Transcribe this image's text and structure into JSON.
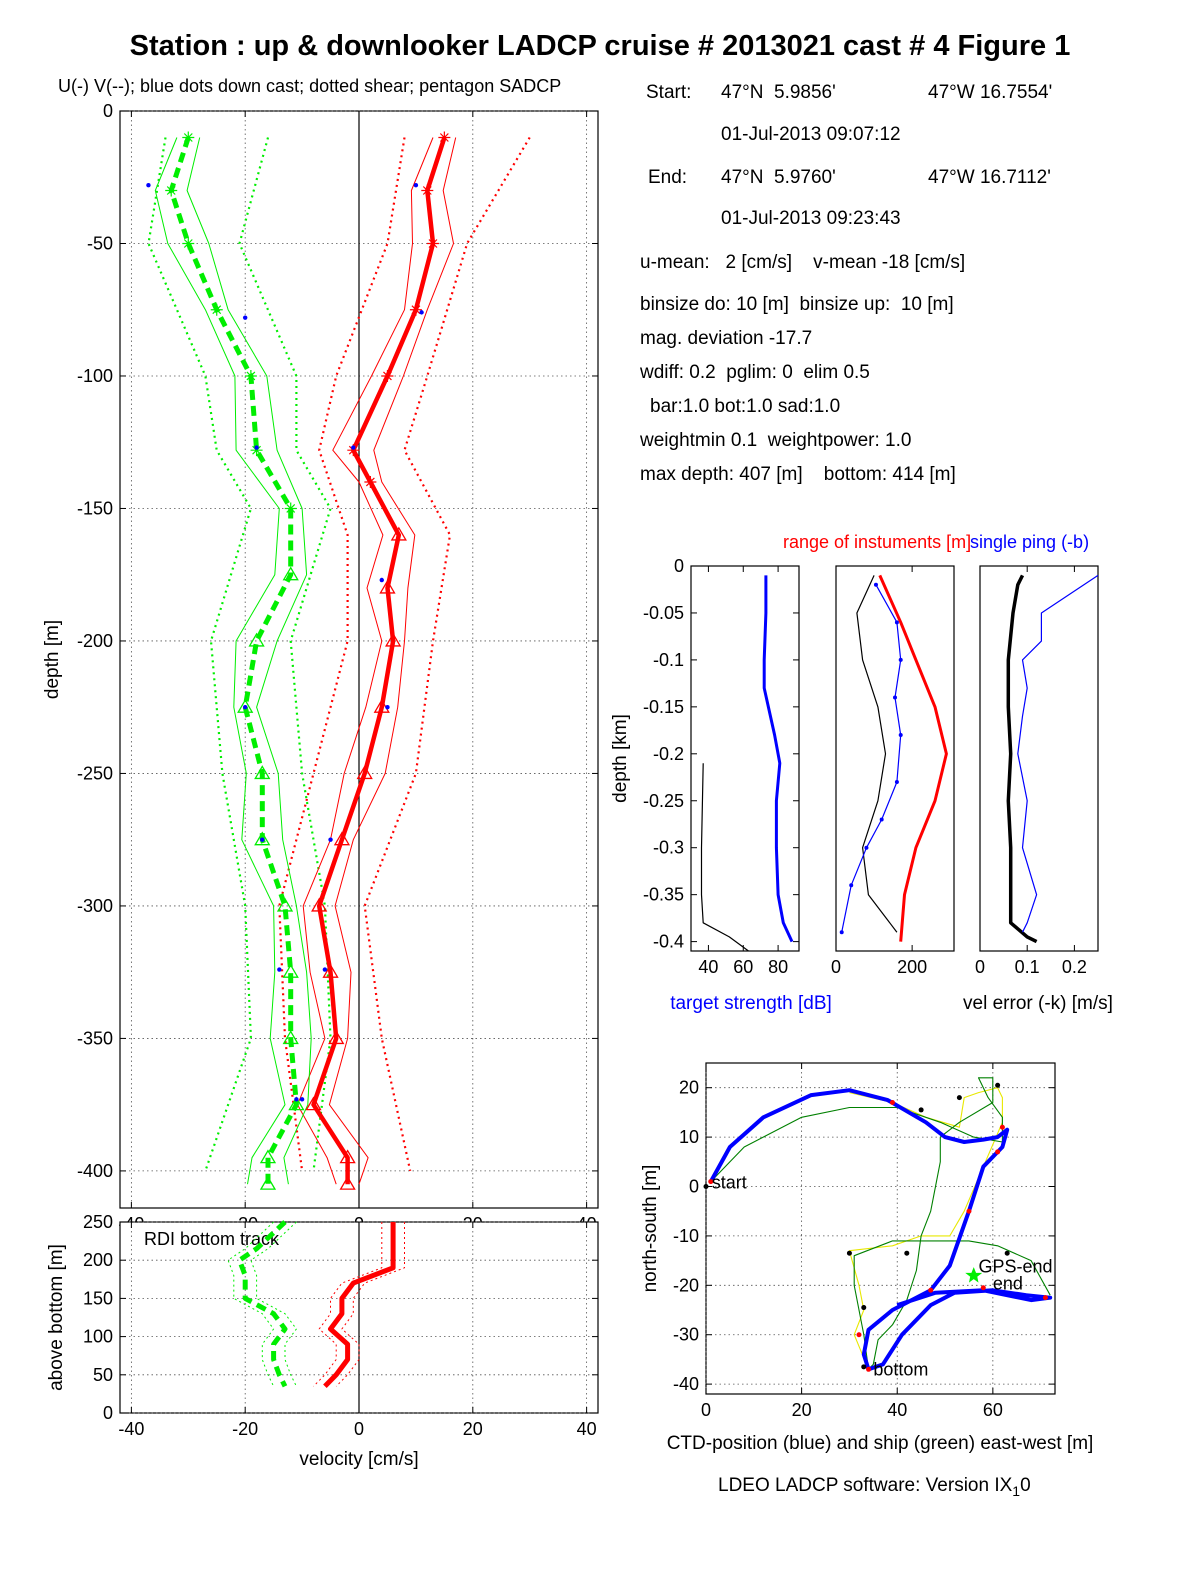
{
  "title": "Station : up & downlooker LADCP cruise # 2013021 cast # 4  Figure 1",
  "footer": "LDEO LADCP software: Version IX",
  "footer_sub": "1",
  "footer_suffix": "0",
  "info": {
    "start_label": "Start:",
    "start_lat": "47°N  5.9856'",
    "start_lon": "47°W 16.7554'",
    "start_time": "01-Jul-2013 09:07:12",
    "end_label": "End:",
    "end_lat": "47°N  5.9760'",
    "end_lon": "47°W 16.7112'",
    "end_time": "01-Jul-2013 09:23:43",
    "means": "u-mean:   2 [cm/s]    v-mean -18 [cm/s]",
    "binsize": "binsize do: 10 [m]  binsize up:  10 [m]",
    "magdev": "mag. deviation -17.7",
    "wdiff": "wdiff: 0.2  pglim: 0  elim 0.5",
    "bar": "bar:1.0 bot:1.0 sad:1.0",
    "weight": "weightmin 0.1  weightpower: 1.0",
    "depth": "max depth: 407 [m]    bottom: 414 [m]"
  },
  "colors": {
    "u": "#ff0000",
    "v": "#00ee00",
    "blue": "#0000ff",
    "black": "#000000",
    "yellow": "#e8e800",
    "grid": "#555555"
  },
  "chart_data": [
    {
      "id": "velocity_profile",
      "type": "line",
      "title": "U(-) V(--); blue dots down cast; dotted shear; pentagon SADCP",
      "xlabel": "",
      "ylabel": "depth [m]",
      "xlim": [
        -42,
        42
      ],
      "ylim": [
        -414,
        0
      ],
      "xticks": [
        -40,
        -20,
        0,
        20,
        40
      ],
      "yticks": [
        0,
        -50,
        -100,
        -150,
        -200,
        -250,
        -300,
        -350,
        -400
      ],
      "grid": true,
      "series": [
        {
          "label": "U",
          "depth": [
            -10,
            -30,
            -50,
            -75,
            -100,
            -128,
            -140,
            -160,
            -180,
            -200,
            -225,
            -250,
            -275,
            -300,
            -325,
            -350,
            -375,
            -395,
            -405
          ],
          "values": [
            15,
            12,
            13,
            10,
            5,
            -1,
            2,
            7,
            5,
            6,
            4,
            1,
            -3,
            -7,
            -5,
            -4,
            -8,
            -2,
            -2
          ]
        },
        {
          "label": "V",
          "depth": [
            -10,
            -30,
            -50,
            -75,
            -100,
            -128,
            -150,
            -175,
            -200,
            -225,
            -250,
            -275,
            -300,
            -325,
            -350,
            -375,
            -395,
            -405
          ],
          "values": [
            -30,
            -33,
            -30,
            -25,
            -19,
            -18,
            -12,
            -12,
            -18,
            -20,
            -17,
            -17,
            -13,
            -12,
            -12,
            -11,
            -16,
            -16
          ]
        },
        {
          "label": "U shear envelope (dotted)",
          "depth": [
            -10,
            -50,
            -100,
            -128,
            -160,
            -200,
            -250,
            -300,
            -350,
            -400
          ],
          "lower": [
            8,
            5,
            -4,
            -7,
            -2,
            -2,
            -8,
            -14,
            -13,
            -10
          ],
          "upper": [
            30,
            19,
            12,
            8,
            16,
            13,
            10,
            1,
            4,
            9
          ]
        },
        {
          "label": "V shear envelope (dotted)",
          "depth": [
            -10,
            -50,
            -100,
            -128,
            -150,
            -200,
            -250,
            -300,
            -350,
            -400
          ],
          "lower": [
            -34,
            -37,
            -27,
            -25,
            -19,
            -26,
            -24,
            -20,
            -19,
            -27
          ],
          "upper": [
            -16,
            -21,
            -11,
            -11,
            -5,
            -12,
            -10,
            -6,
            -5,
            -8
          ]
        },
        {
          "label": "blue dots down cast",
          "points": [
            [
              -37,
              -28
            ],
            [
              -20,
              -78
            ],
            [
              -18,
              -127
            ],
            [
              -20,
              -225
            ],
            [
              -17,
              -275
            ],
            [
              -14,
              -324
            ],
            [
              -11,
              -373
            ],
            [
              10,
              -28
            ],
            [
              11,
              -76
            ],
            [
              -1,
              -127
            ],
            [
              4,
              -177
            ],
            [
              5,
              -225
            ],
            [
              -5,
              -275
            ],
            [
              -6,
              -324
            ],
            [
              -10,
              -373
            ]
          ]
        }
      ]
    },
    {
      "id": "bottom_track",
      "type": "line",
      "title": "RDI bottom track",
      "xlabel": "velocity [cm/s]",
      "ylabel": "above bottom [m]",
      "xlim": [
        -42,
        42
      ],
      "ylim": [
        0,
        250
      ],
      "xticks": [
        -40,
        -20,
        0,
        20,
        40
      ],
      "yticks": [
        0,
        50,
        100,
        150,
        200,
        250
      ],
      "grid": true,
      "series": [
        {
          "label": "U",
          "height": [
            250,
            215,
            190,
            170,
            150,
            130,
            110,
            90,
            70,
            50,
            35
          ],
          "values": [
            6,
            6,
            6,
            -1,
            -3,
            -3,
            -5,
            -2,
            -2,
            -4,
            -6
          ]
        },
        {
          "label": "V",
          "height": [
            250,
            215,
            200,
            180,
            150,
            130,
            110,
            90,
            70,
            50,
            35
          ],
          "values": [
            -13,
            -18,
            -21,
            -20,
            -20,
            -15,
            -13,
            -15,
            -15,
            -14,
            -13
          ]
        }
      ]
    },
    {
      "id": "target_strength",
      "type": "line",
      "title": "",
      "xlabel": "target strength [dB]",
      "ylabel": "depth [km]",
      "xlim": [
        30,
        92
      ],
      "ylim": [
        -0.41,
        0
      ],
      "xticks": [
        40,
        60,
        80
      ],
      "yticks": [
        0,
        -0.05,
        -0.1,
        -0.15,
        -0.2,
        -0.25,
        -0.3,
        -0.35,
        -0.4
      ],
      "grid": false,
      "series": [
        {
          "color": "blue",
          "depth": [
            -0.01,
            -0.05,
            -0.1,
            -0.13,
            -0.18,
            -0.21,
            -0.25,
            -0.3,
            -0.35,
            -0.38,
            -0.4
          ],
          "values": [
            73,
            73,
            72,
            72,
            78,
            81,
            79,
            79,
            80,
            83,
            88
          ]
        },
        {
          "color": "black",
          "depth": [
            -0.21,
            -0.3,
            -0.35,
            -0.38,
            -0.395,
            -0.41
          ],
          "values": [
            37,
            36,
            36,
            37,
            52,
            63
          ]
        }
      ]
    },
    {
      "id": "range_of_instruments",
      "type": "line",
      "title": "range of instuments [m]",
      "xlabel": "",
      "ylabel": "",
      "xlim": [
        0,
        310
      ],
      "ylim": [
        -0.41,
        0
      ],
      "xticks": [
        0,
        200
      ],
      "grid": false,
      "series": [
        {
          "color": "red",
          "depth": [
            -0.01,
            -0.06,
            -0.1,
            -0.15,
            -0.2,
            -0.25,
            -0.3,
            -0.35,
            -0.4
          ],
          "values": [
            115,
            170,
            210,
            260,
            290,
            260,
            210,
            180,
            170
          ]
        },
        {
          "color": "black",
          "depth": [
            -0.01,
            -0.05,
            -0.1,
            -0.15,
            -0.2,
            -0.25,
            -0.3,
            -0.35,
            -0.39
          ],
          "values": [
            100,
            55,
            70,
            110,
            130,
            110,
            70,
            85,
            160
          ]
        },
        {
          "color": "blue",
          "depth": [
            -0.02,
            -0.06,
            -0.1,
            -0.14,
            -0.18,
            -0.23,
            -0.27,
            -0.3,
            -0.34,
            -0.39
          ],
          "values": [
            105,
            160,
            170,
            155,
            170,
            160,
            120,
            80,
            40,
            15
          ]
        }
      ]
    },
    {
      "id": "velocity_error",
      "type": "line",
      "title": "single ping (-b)",
      "xlabel": "vel error (-k) [m/s]",
      "ylabel": "",
      "xlim": [
        0,
        0.25
      ],
      "ylim": [
        -0.41,
        0
      ],
      "xticks": [
        0,
        0.1,
        0.2
      ],
      "grid": false,
      "series": [
        {
          "color": "black",
          "depth": [
            -0.01,
            -0.02,
            -0.05,
            -0.1,
            -0.15,
            -0.2,
            -0.25,
            -0.3,
            -0.35,
            -0.38,
            -0.395,
            -0.4
          ],
          "values": [
            0.09,
            0.08,
            0.07,
            0.06,
            0.06,
            0.065,
            0.06,
            0.065,
            0.065,
            0.065,
            0.1,
            0.12
          ]
        },
        {
          "color": "blue",
          "depth": [
            -0.01,
            -0.05,
            -0.08,
            -0.1,
            -0.13,
            -0.16,
            -0.2,
            -0.25,
            -0.3,
            -0.35,
            -0.38,
            -0.39
          ],
          "values": [
            0.25,
            0.13,
            0.13,
            0.09,
            0.1,
            0.09,
            0.08,
            0.1,
            0.09,
            0.12,
            0.1,
            0.09
          ]
        }
      ]
    },
    {
      "id": "position",
      "type": "line",
      "title": "",
      "xlabel": "CTD-position (blue) and ship (green) east-west [m]",
      "ylabel": "north-south [m]",
      "xlim": [
        0,
        73
      ],
      "ylim": [
        -42,
        25
      ],
      "xticks": [
        0,
        20,
        40,
        60
      ],
      "yticks": [
        20,
        10,
        0,
        -10,
        -20,
        -30,
        -40
      ],
      "grid": true,
      "labels": {
        "start": "start",
        "bottom": "bottom",
        "gps_end": "GPS-end",
        "end": "end"
      },
      "series": [
        {
          "label": "CTD",
          "color": "blue",
          "points": [
            [
              1,
              1
            ],
            [
              5,
              8
            ],
            [
              12,
              14
            ],
            [
              22,
              18.5
            ],
            [
              30,
              19.5
            ],
            [
              38,
              17.5
            ],
            [
              46,
              13
            ],
            [
              50,
              10
            ],
            [
              54,
              9
            ],
            [
              58,
              9.5
            ],
            [
              61,
              10
            ],
            [
              63,
              11.5
            ],
            [
              62,
              8
            ],
            [
              58,
              4
            ],
            [
              55,
              -5
            ],
            [
              51,
              -16
            ],
            [
              47,
              -21
            ],
            [
              39,
              -25
            ],
            [
              34,
              -29
            ],
            [
              33,
              -34
            ],
            [
              34,
              -37
            ],
            [
              37,
              -36
            ],
            [
              41,
              -30
            ],
            [
              47,
              -24
            ],
            [
              52,
              -21.5
            ],
            [
              60,
              -21
            ],
            [
              67,
              -22
            ],
            [
              72,
              -22.5
            ],
            [
              68,
              -23
            ],
            [
              58,
              -21
            ],
            [
              48,
              -21.5
            ],
            [
              40,
              -24
            ]
          ]
        },
        {
          "label": "ship",
          "color": "green",
          "points": [
            [
              1,
              1
            ],
            [
              8,
              8
            ],
            [
              20,
              14
            ],
            [
              30,
              16
            ],
            [
              40,
              16
            ],
            [
              49,
              13
            ],
            [
              56,
              10
            ],
            [
              62,
              9
            ],
            [
              62,
              14
            ],
            [
              59,
              18
            ],
            [
              57,
              22
            ],
            [
              60,
              22
            ],
            [
              60,
              17
            ],
            [
              53,
              13
            ],
            [
              49,
              10
            ],
            [
              49,
              5
            ],
            [
              48,
              0
            ],
            [
              47,
              -5
            ],
            [
              45,
              -10
            ],
            [
              44,
              -17
            ],
            [
              42,
              -23
            ],
            [
              39,
              -28
            ],
            [
              36,
              -31
            ],
            [
              35,
              -36
            ],
            [
              34,
              -37
            ],
            [
              33,
              -30
            ],
            [
              31,
              -20
            ],
            [
              31,
              -14
            ],
            [
              39,
              -11
            ],
            [
              46,
              -11
            ],
            [
              55,
              -11
            ],
            [
              61,
              -12
            ],
            [
              68,
              -15
            ],
            [
              72,
              -22
            ]
          ]
        },
        {
          "label": "ship yellow",
          "color": "yellow",
          "points": [
            [
              30,
              19
            ],
            [
              39,
              17
            ],
            [
              46,
              14
            ],
            [
              53,
              12
            ],
            [
              54,
              18
            ],
            [
              57,
              19
            ],
            [
              61,
              20
            ],
            [
              62,
              18
            ],
            [
              62,
              13
            ],
            [
              54,
              -5
            ],
            [
              51,
              -10
            ],
            [
              45,
              -10
            ],
            [
              39,
              -12
            ],
            [
              30,
              -13
            ],
            [
              32,
              -20
            ],
            [
              33,
              -25
            ],
            [
              31,
              -30
            ],
            [
              34,
              -37
            ]
          ]
        },
        {
          "label": "black markers",
          "color": "black",
          "points": [
            [
              0,
              0
            ],
            [
              45,
              15.5
            ],
            [
              53,
              18
            ],
            [
              61,
              20.5
            ],
            [
              30,
              -13.5
            ],
            [
              42,
              -13.5
            ],
            [
              63,
              -13.5
            ],
            [
              56,
              -18
            ],
            [
              33,
              -24.5
            ],
            [
              33,
              -36.5
            ]
          ]
        },
        {
          "label": "red markers",
          "color": "red",
          "points": [
            [
              1,
              1
            ],
            [
              39,
              17
            ],
            [
              62,
              12
            ],
            [
              61,
              7
            ],
            [
              55,
              -5
            ],
            [
              47,
              -21
            ],
            [
              32,
              -30
            ],
            [
              58,
              -20.5
            ],
            [
              71,
              -22.5
            ],
            [
              34,
              -37
            ]
          ]
        }
      ]
    }
  ]
}
